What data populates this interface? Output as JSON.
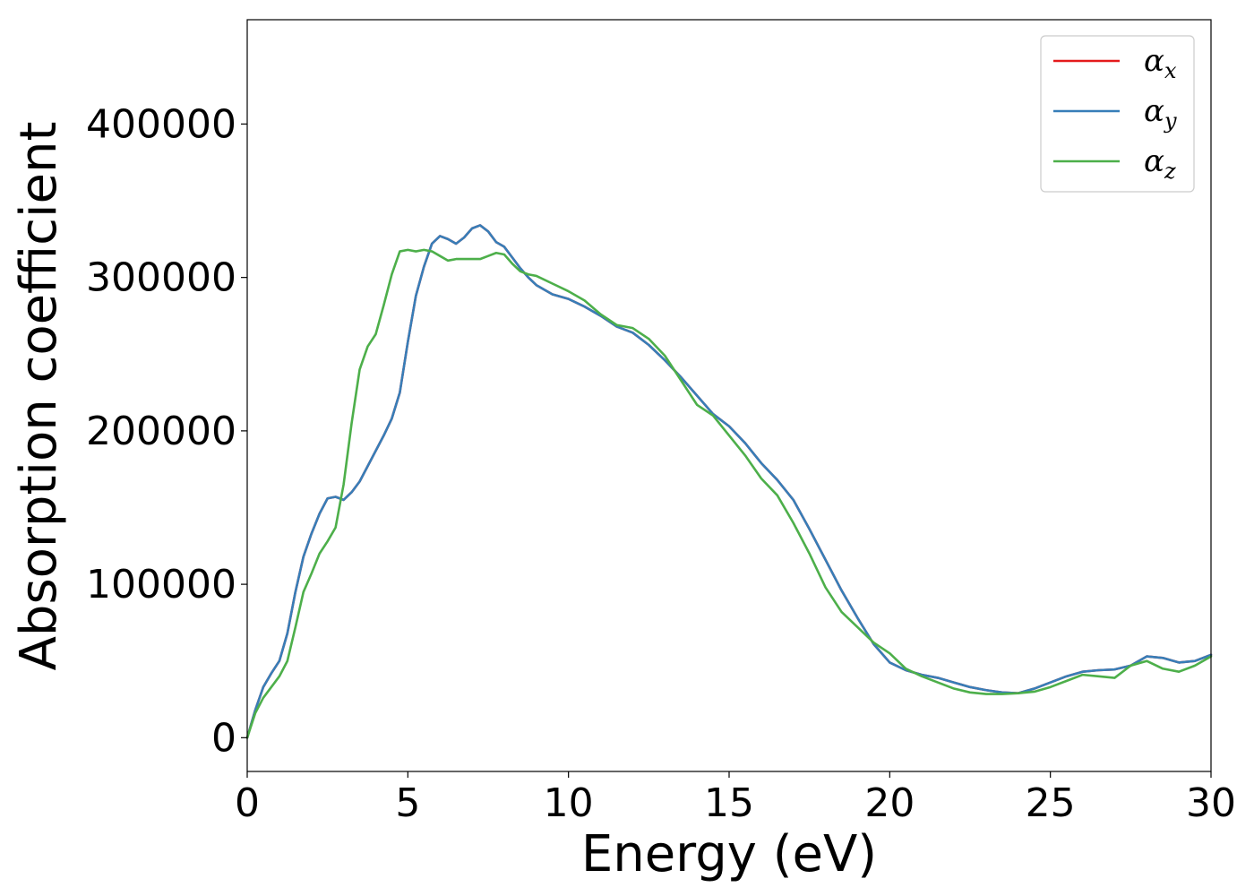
{
  "chart_data": {
    "type": "line",
    "xlabel": "Energy (eV)",
    "ylabel": "Absorption coefficient",
    "xlim": [
      0,
      30
    ],
    "ylim": [
      -22000,
      468000
    ],
    "xticks": [
      0,
      5,
      10,
      15,
      20,
      25,
      30
    ],
    "xtick_labels": [
      "0",
      "5",
      "10",
      "15",
      "20",
      "25",
      "30"
    ],
    "yticks": [
      0,
      100000,
      200000,
      300000,
      400000
    ],
    "ytick_labels": [
      "0",
      "100000",
      "200000",
      "300000",
      "400000"
    ],
    "grid": false,
    "legend_position": "top-right",
    "x": [
      0,
      0.25,
      0.5,
      0.75,
      1,
      1.25,
      1.5,
      1.75,
      2,
      2.25,
      2.5,
      2.75,
      3,
      3.25,
      3.5,
      3.75,
      4,
      4.25,
      4.5,
      4.75,
      5,
      5.25,
      5.5,
      5.75,
      6,
      6.25,
      6.5,
      6.75,
      7,
      7.25,
      7.5,
      7.75,
      8,
      8.25,
      8.5,
      8.75,
      9,
      9.5,
      10,
      10.5,
      11,
      11.5,
      12,
      12.5,
      13,
      13.5,
      14,
      14.5,
      15,
      15.5,
      16,
      16.5,
      17,
      17.5,
      18,
      18.5,
      19,
      19.5,
      20,
      20.5,
      21,
      21.5,
      22,
      22.5,
      23,
      23.5,
      24,
      24.5,
      25,
      25.5,
      26,
      26.5,
      27,
      27.5,
      28,
      28.5,
      29,
      29.5,
      30
    ],
    "series": [
      {
        "name": "α_x",
        "label_base": "α",
        "label_sub": "x",
        "color": "#e41a1c",
        "values": [
          0,
          18000,
          33000,
          42000,
          50000,
          68000,
          95000,
          118000,
          133000,
          146000,
          156000,
          157000,
          155000,
          160000,
          167000,
          177000,
          187000,
          197000,
          208000,
          225000,
          258000,
          288000,
          307000,
          322000,
          327000,
          325000,
          322000,
          326000,
          332000,
          334000,
          330000,
          323000,
          320000,
          313000,
          306000,
          300000,
          295000,
          289000,
          286000,
          281000,
          275000,
          268000,
          264000,
          256000,
          246000,
          235000,
          223000,
          211000,
          203000,
          192000,
          179000,
          168000,
          155000,
          136000,
          116000,
          96000,
          78000,
          61000,
          49000,
          44000,
          41000,
          39000,
          36000,
          33000,
          31000,
          29500,
          29000,
          32000,
          36000,
          40000,
          43000,
          44000,
          44500,
          47000,
          53000,
          52000,
          49000,
          50000,
          54000
        ]
      },
      {
        "name": "α_y",
        "label_base": "α",
        "label_sub": "y",
        "color": "#377eb8",
        "values": [
          0,
          18000,
          33000,
          42000,
          50000,
          68000,
          95000,
          118000,
          133000,
          146000,
          156000,
          157000,
          155000,
          160000,
          167000,
          177000,
          187000,
          197000,
          208000,
          225000,
          258000,
          288000,
          307000,
          322000,
          327000,
          325000,
          322000,
          326000,
          332000,
          334000,
          330000,
          323000,
          320000,
          313000,
          306000,
          300000,
          295000,
          289000,
          286000,
          281000,
          275000,
          268000,
          264000,
          256000,
          246000,
          235000,
          223000,
          211000,
          203000,
          192000,
          179000,
          168000,
          155000,
          136000,
          116000,
          96000,
          78000,
          61000,
          49000,
          44000,
          41000,
          39000,
          36000,
          33000,
          31000,
          29500,
          29000,
          32000,
          36000,
          40000,
          43000,
          44000,
          44500,
          47000,
          53000,
          52000,
          49000,
          50000,
          54000
        ]
      },
      {
        "name": "α_z",
        "label_base": "α",
        "label_sub": "z",
        "color": "#4daf4a",
        "values": [
          0,
          16000,
          26000,
          33000,
          40000,
          50000,
          72000,
          95000,
          107000,
          120000,
          128000,
          137000,
          165000,
          205000,
          240000,
          255000,
          263000,
          282000,
          302000,
          317000,
          318000,
          317000,
          318000,
          317000,
          314000,
          311000,
          312000,
          312000,
          312000,
          312000,
          314000,
          316000,
          315000,
          309000,
          304000,
          302000,
          301000,
          296000,
          291000,
          285000,
          276000,
          269000,
          267000,
          260000,
          249000,
          233000,
          217000,
          210000,
          197000,
          184000,
          169000,
          158000,
          140000,
          120000,
          98000,
          82000,
          72000,
          62000,
          55000,
          45000,
          40000,
          36000,
          32000,
          29500,
          28500,
          28500,
          29000,
          30000,
          33000,
          37000,
          41000,
          40000,
          39000,
          47000,
          50000,
          45000,
          43000,
          47000,
          53000
        ]
      }
    ]
  }
}
